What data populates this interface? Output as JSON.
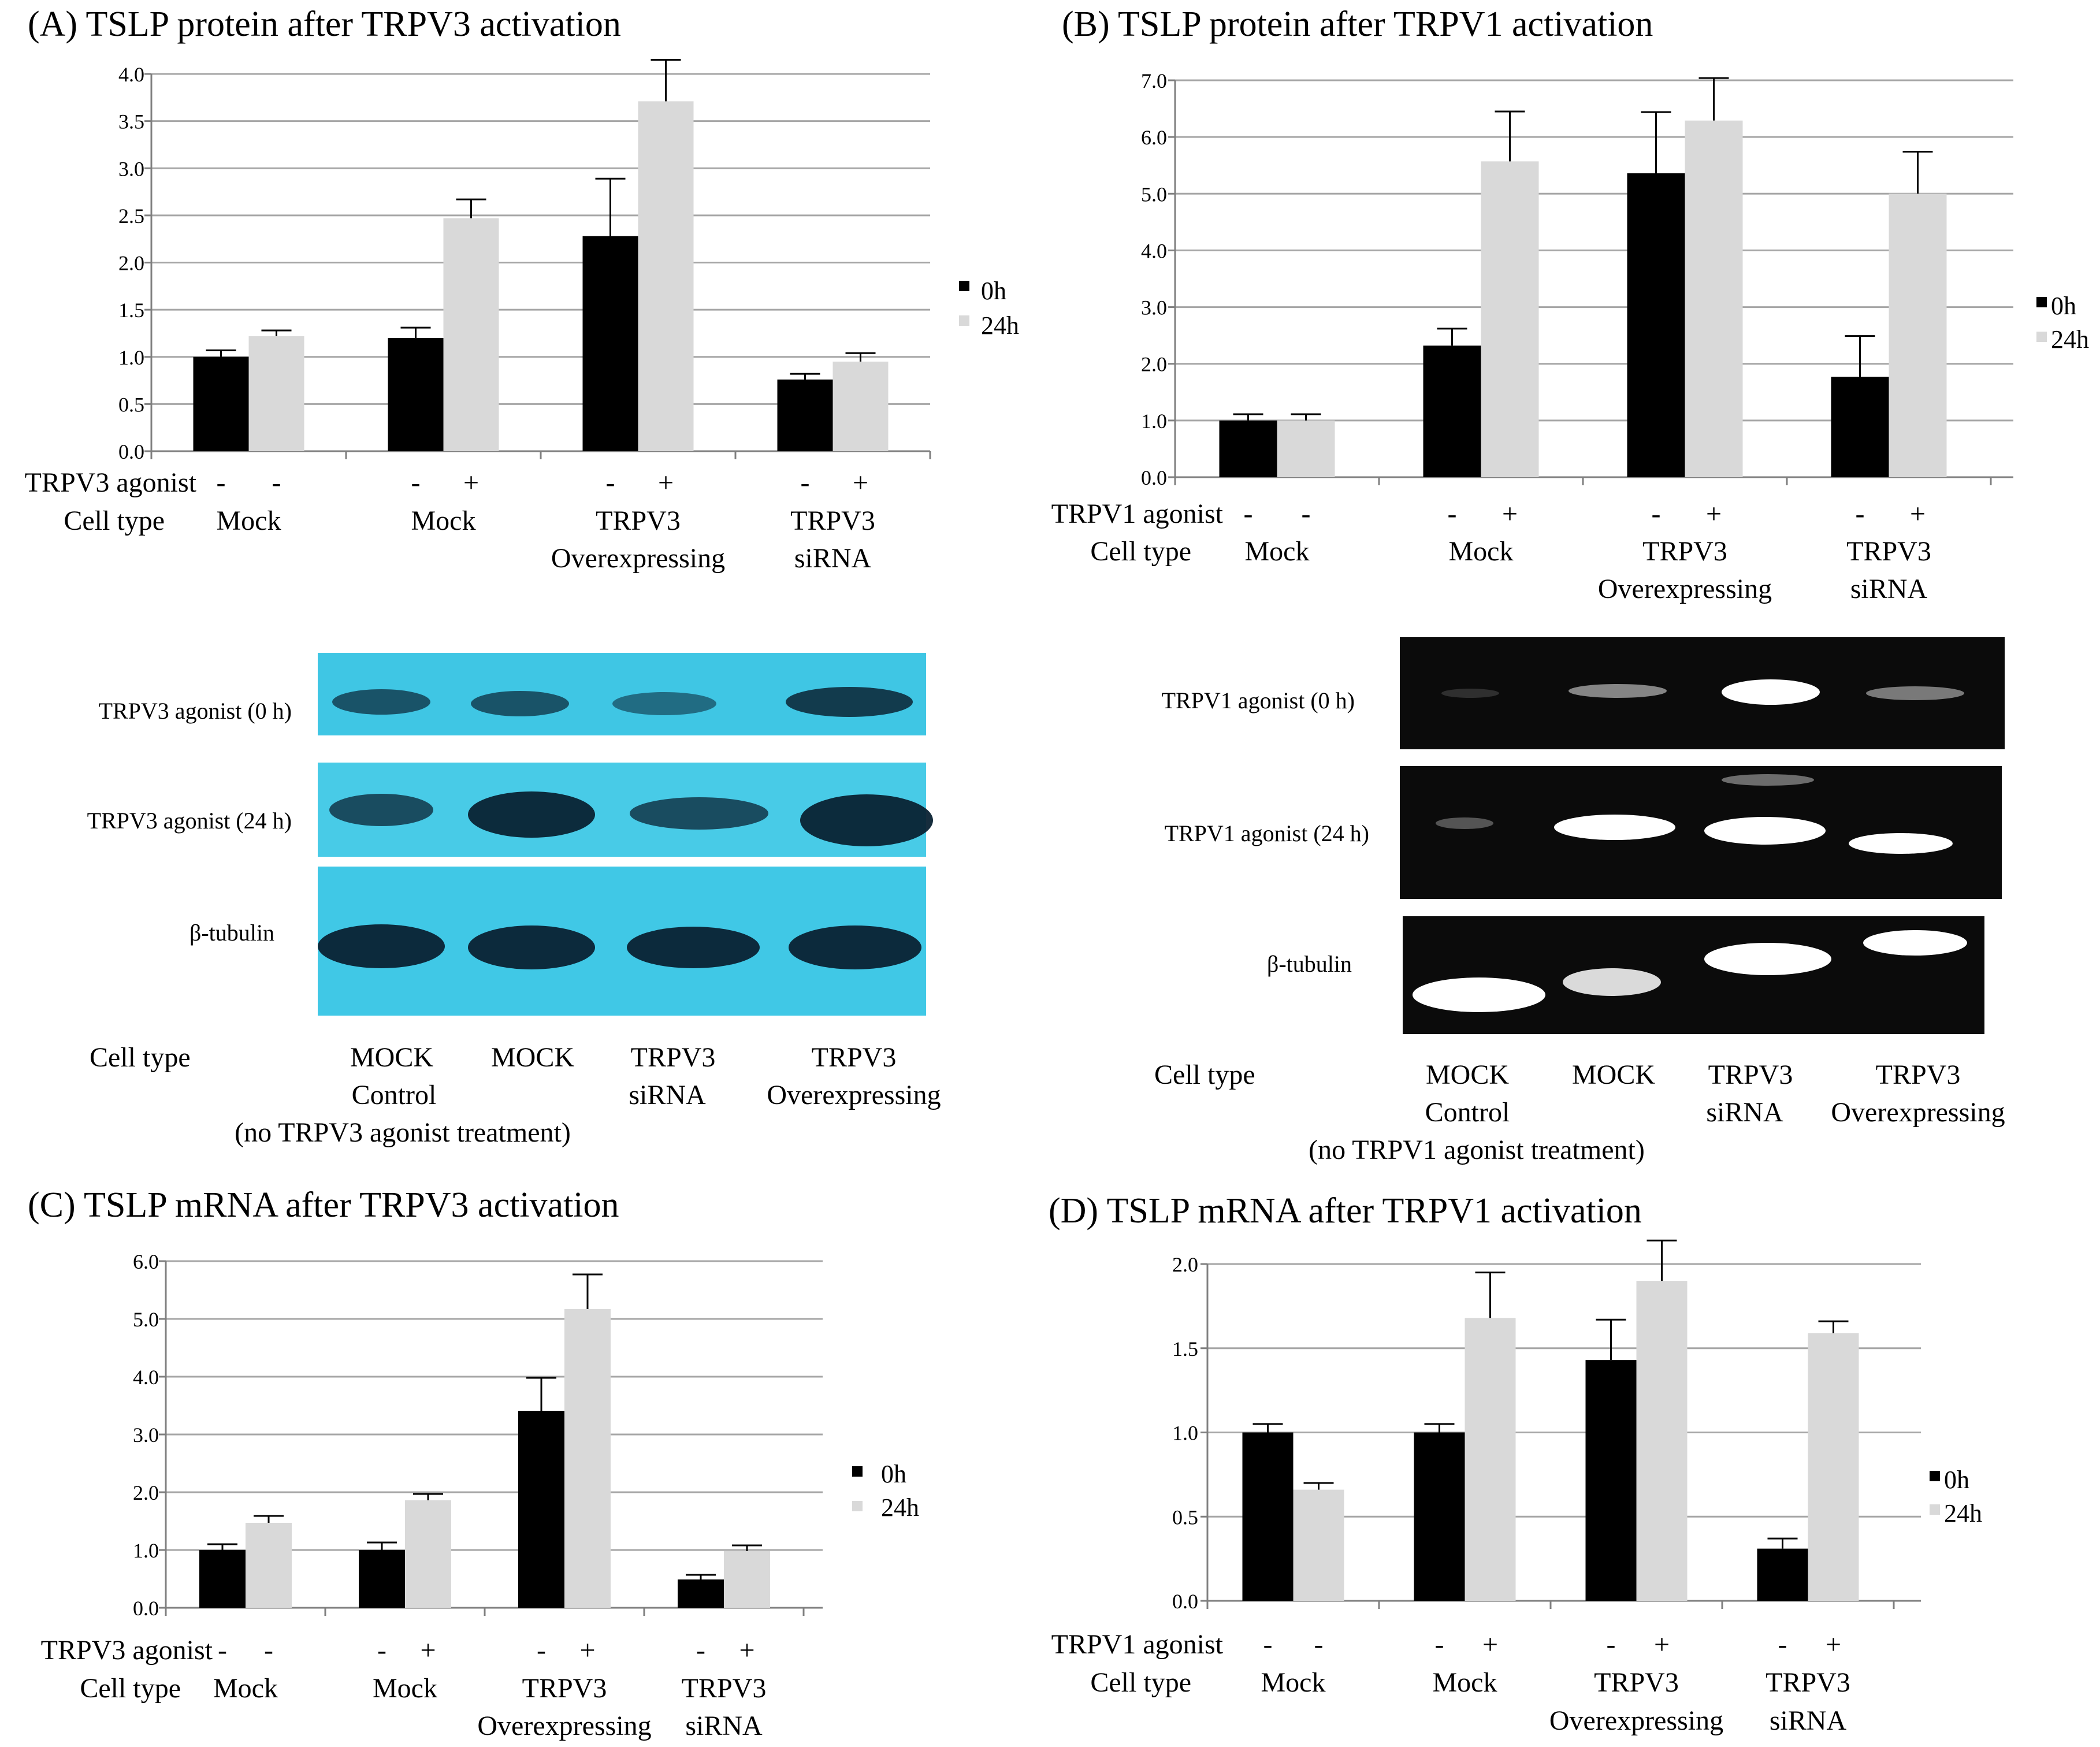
{
  "colors": {
    "bar_0h": "#000000",
    "bar_24h": "#d9d9d9",
    "gridline": "#a6a6a6",
    "blot_a_bg": "#3fc6e4",
    "blot_a_band": "#0a2233",
    "blot_b_bg": "#0b0b0b",
    "blot_b_band": "#ffffff"
  },
  "chart_data": [
    {
      "id": "A",
      "type": "bar",
      "title": "(A) TSLP protein after TRPV3 activation",
      "ylim": [
        0,
        4.0
      ],
      "yticks": [
        "0.0",
        "0.5",
        "1.0",
        "1.5",
        "2.0",
        "2.5",
        "3.0",
        "3.5",
        "4.0"
      ],
      "ytick_values": [
        0,
        0.5,
        1.0,
        1.5,
        2.0,
        2.5,
        3.0,
        3.5,
        4.0
      ],
      "grid": true,
      "legend": [
        "0h",
        "24h"
      ],
      "agonist_label": "TRPV3 agonist",
      "celltype_label": "Cell type",
      "groups": [
        {
          "agonist": [
            "-",
            "-"
          ],
          "cell_type": [
            "Mock"
          ],
          "values": [
            1.0,
            1.22
          ],
          "errors": [
            0.07,
            0.06
          ]
        },
        {
          "agonist": [
            "-",
            "+"
          ],
          "cell_type": [
            "Mock"
          ],
          "values": [
            1.2,
            2.47
          ],
          "errors": [
            0.11,
            0.2
          ]
        },
        {
          "agonist": [
            "-",
            "+"
          ],
          "cell_type": [
            "TRPV3",
            "Overexpressing"
          ],
          "values": [
            2.28,
            3.71
          ],
          "errors": [
            0.61,
            0.44
          ]
        },
        {
          "agonist": [
            "-",
            "+"
          ],
          "cell_type": [
            "TRPV3",
            "siRNA"
          ],
          "values": [
            0.76,
            0.95
          ],
          "errors": [
            0.06,
            0.09
          ]
        }
      ]
    },
    {
      "id": "B",
      "type": "bar",
      "title": "(B) TSLP protein after TRPV1 activation",
      "ylim": [
        0,
        7.0
      ],
      "yticks": [
        "0.0",
        "1.0",
        "2.0",
        "3.0",
        "4.0",
        "5.0",
        "6.0",
        "7.0"
      ],
      "ytick_values": [
        0,
        1,
        2,
        3,
        4,
        5,
        6,
        7
      ],
      "grid": true,
      "legend": [
        "0h",
        "24h"
      ],
      "agonist_label": "TRPV1 agonist",
      "celltype_label": "Cell type",
      "groups": [
        {
          "agonist": [
            "-",
            "-"
          ],
          "cell_type": [
            "Mock"
          ],
          "values": [
            1.0,
            1.0
          ],
          "errors": [
            0.11,
            0.11
          ]
        },
        {
          "agonist": [
            "-",
            "+"
          ],
          "cell_type": [
            "Mock"
          ],
          "values": [
            2.32,
            5.57
          ],
          "errors": [
            0.3,
            0.88
          ]
        },
        {
          "agonist": [
            "-",
            "+"
          ],
          "cell_type": [
            "TRPV3",
            "Overexpressing"
          ],
          "values": [
            5.36,
            6.29
          ],
          "errors": [
            1.08,
            0.75
          ]
        },
        {
          "agonist": [
            "-",
            "+"
          ],
          "cell_type": [
            "TRPV3",
            "siRNA"
          ],
          "values": [
            1.77,
            5.0
          ],
          "errors": [
            0.72,
            0.74
          ]
        }
      ]
    },
    {
      "id": "C",
      "type": "bar",
      "title": "(C) TSLP mRNA after TRPV3 activation",
      "ylim": [
        0,
        6.0
      ],
      "yticks": [
        "0.0",
        "1.0",
        "2.0",
        "3.0",
        "4.0",
        "5.0",
        "6.0"
      ],
      "ytick_values": [
        0,
        1,
        2,
        3,
        4,
        5,
        6
      ],
      "grid": true,
      "legend": [
        "0h",
        "24h"
      ],
      "agonist_label": "TRPV3 agonist",
      "celltype_label": "Cell type",
      "groups": [
        {
          "agonist": [
            "-",
            "-"
          ],
          "cell_type": [
            "Mock"
          ],
          "values": [
            1.0,
            1.47
          ],
          "errors": [
            0.1,
            0.12
          ]
        },
        {
          "agonist": [
            "-",
            "+"
          ],
          "cell_type": [
            "Mock"
          ],
          "values": [
            1.0,
            1.86
          ],
          "errors": [
            0.13,
            0.11
          ]
        },
        {
          "agonist": [
            "-",
            "+"
          ],
          "cell_type": [
            "TRPV3",
            "Overexpressing"
          ],
          "values": [
            3.41,
            5.17
          ],
          "errors": [
            0.57,
            0.6
          ]
        },
        {
          "agonist": [
            "-",
            "+"
          ],
          "cell_type": [
            "TRPV3",
            "siRNA"
          ],
          "values": [
            0.49,
            0.98
          ],
          "errors": [
            0.08,
            0.1
          ]
        }
      ]
    },
    {
      "id": "D",
      "type": "bar",
      "title": "(D) TSLP mRNA after TRPV1 activation",
      "ylim": [
        0,
        2.0
      ],
      "yticks": [
        "0.0",
        "0.5",
        "1.0",
        "1.5",
        "2.0"
      ],
      "ytick_values": [
        0,
        0.5,
        1.0,
        1.5,
        2.0
      ],
      "grid": true,
      "legend": [
        "0h",
        "24h"
      ],
      "agonist_label": "TRPV1 agonist",
      "celltype_label": "Cell type",
      "groups": [
        {
          "agonist": [
            "-",
            "-"
          ],
          "cell_type": [
            "Mock"
          ],
          "values": [
            1.0,
            0.66
          ],
          "errors": [
            0.05,
            0.04
          ]
        },
        {
          "agonist": [
            "-",
            "+"
          ],
          "cell_type": [
            "Mock"
          ],
          "values": [
            1.0,
            1.68
          ],
          "errors": [
            0.05,
            0.27
          ]
        },
        {
          "agonist": [
            "-",
            "+"
          ],
          "cell_type": [
            "TRPV3",
            "Overexpressing"
          ],
          "values": [
            1.43,
            1.9
          ],
          "errors": [
            0.24,
            0.24
          ]
        },
        {
          "agonist": [
            "-",
            "+"
          ],
          "cell_type": [
            "TRPV3",
            "siRNA"
          ],
          "values": [
            0.31,
            1.59
          ],
          "errors": [
            0.06,
            0.07
          ]
        }
      ]
    }
  ],
  "blots": [
    {
      "id": "A",
      "rows": [
        "TRPV3 agonist (0 h)",
        "TRPV3 agonist (24 h)",
        "β-tubulin"
      ],
      "celltype_label": "Cell type",
      "lanes": [
        [
          "MOCK",
          "Control",
          "(no TRPV3 agonist treatment)"
        ],
        [
          "MOCK"
        ],
        [
          "TRPV3",
          "siRNA"
        ],
        [
          "TRPV3",
          "Overexpressing"
        ]
      ]
    },
    {
      "id": "B",
      "rows": [
        "TRPV1  agonist (0 h)",
        "TRPV1  agonist (24 h)",
        "β-tubulin"
      ],
      "celltype_label": "Cell type",
      "lanes": [
        [
          "MOCK",
          "Control",
          "(no TRPV1 agonist treatment)"
        ],
        [
          "MOCK"
        ],
        [
          "TRPV3",
          "siRNA"
        ],
        [
          "TRPV3",
          "Overexpressing"
        ]
      ]
    }
  ]
}
